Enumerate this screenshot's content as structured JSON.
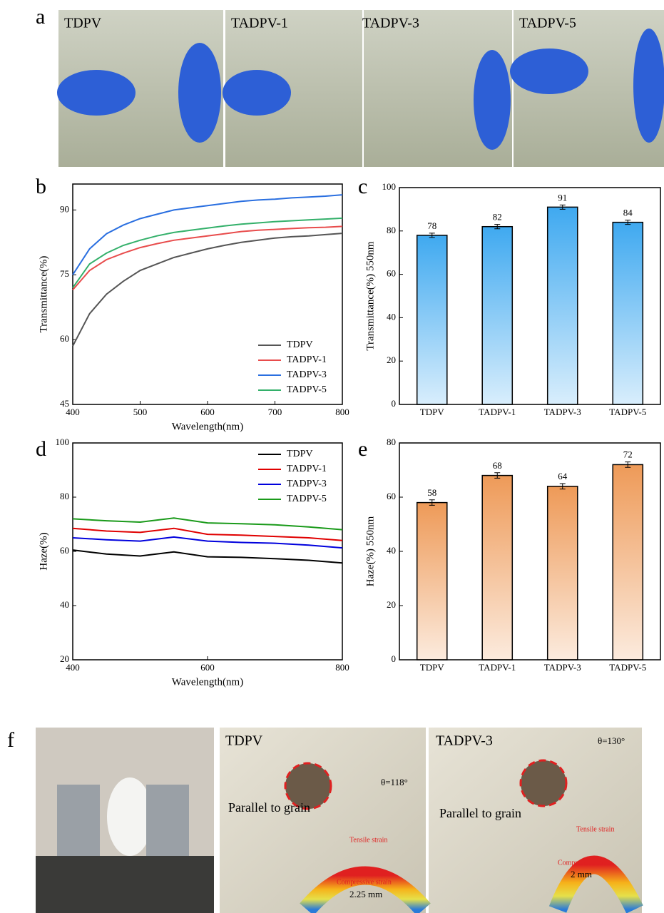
{
  "panel_labels": [
    "a",
    "b",
    "c",
    "d",
    "e",
    "f"
  ],
  "photos_a": {
    "labels": [
      "TDPV",
      "TADPV-1",
      "TADPV-3",
      "TADPV-5"
    ]
  },
  "photos_f": {
    "labels": [
      "TDPV",
      "TADPV-3"
    ],
    "direction": "Parallel to grain",
    "angles": [
      "θ=118°",
      "θ=130°"
    ],
    "tensile": "Tensile strain",
    "compressive": "Compressive strain",
    "radii": [
      "2.25 mm",
      "2 mm"
    ]
  },
  "chart_data": [
    {
      "type": "line",
      "xlabel": "Wavelength(nm)",
      "ylabel": "Transmittance(%)",
      "x": [
        400,
        425,
        450,
        475,
        500,
        525,
        550,
        575,
        600,
        625,
        650,
        675,
        700,
        725,
        750,
        775,
        800
      ],
      "xlim": [
        400,
        800
      ],
      "xticks": [
        400,
        500,
        600,
        700,
        800
      ],
      "ylim": [
        45,
        96
      ],
      "yticks": [
        45,
        60,
        75,
        90
      ],
      "legend": "lower right",
      "series": [
        {
          "name": "TDPV",
          "color": "#555555",
          "values": [
            58.5,
            66,
            70.5,
            73.5,
            76,
            77.5,
            79,
            80,
            81,
            81.8,
            82.5,
            83,
            83.5,
            83.8,
            84,
            84.3,
            84.6
          ]
        },
        {
          "name": "TADPV-1",
          "color": "#e84c4c",
          "values": [
            71.5,
            76,
            78.5,
            80,
            81.3,
            82.2,
            83,
            83.5,
            84,
            84.5,
            85,
            85.3,
            85.5,
            85.7,
            85.9,
            86,
            86.2
          ]
        },
        {
          "name": "TADPV-3",
          "color": "#2a6fe0",
          "values": [
            75,
            81,
            84.5,
            86.5,
            88,
            89,
            90,
            90.5,
            91,
            91.5,
            92,
            92.3,
            92.5,
            92.8,
            93,
            93.2,
            93.5
          ]
        },
        {
          "name": "TADPV-5",
          "color": "#33b06a",
          "values": [
            72,
            77.5,
            80,
            81.8,
            83,
            84,
            84.8,
            85.3,
            85.8,
            86.3,
            86.7,
            87,
            87.3,
            87.5,
            87.7,
            87.9,
            88.1
          ]
        }
      ]
    },
    {
      "type": "bar",
      "ylabel": "Transmittance(%)  550nm",
      "categories": [
        "TDPV",
        "TADPV-1",
        "TADPV-3",
        "TADPV-5"
      ],
      "values": [
        78,
        82,
        91,
        84
      ],
      "errors": [
        1,
        1,
        1,
        1
      ],
      "color": "#3fa9f0",
      "ylim": [
        0,
        100
      ],
      "yticks": [
        0,
        20,
        40,
        60,
        80,
        100
      ]
    },
    {
      "type": "line",
      "xlabel": "Wavelength(nm)",
      "ylabel": "Haze(%)",
      "x": [
        400,
        450,
        500,
        550,
        600,
        650,
        700,
        750,
        800
      ],
      "xlim": [
        400,
        800
      ],
      "xticks": [
        400,
        600,
        800
      ],
      "ylim": [
        20,
        100
      ],
      "yticks": [
        20,
        40,
        60,
        80,
        100
      ],
      "legend": "upper right",
      "series": [
        {
          "name": "TDPV",
          "color": "#000000",
          "values": [
            60.5,
            59,
            58.3,
            59.8,
            58,
            57.8,
            57.3,
            56.7,
            55.7
          ]
        },
        {
          "name": "TADPV-1",
          "color": "#e00000",
          "values": [
            68.5,
            67.5,
            67,
            68.5,
            66.3,
            66,
            65.5,
            65,
            64
          ]
        },
        {
          "name": "TADPV-3",
          "color": "#0000dd",
          "values": [
            65,
            64.3,
            63.8,
            65.3,
            63.8,
            63.3,
            63,
            62.3,
            61.3
          ]
        },
        {
          "name": "TADPV-5",
          "color": "#1a9a1a",
          "values": [
            72,
            71.3,
            70.8,
            72.3,
            70.5,
            70.2,
            69.8,
            69,
            68
          ]
        }
      ]
    },
    {
      "type": "bar",
      "ylabel": "Haze(%)  550nm",
      "categories": [
        "TDPV",
        "TADPV-1",
        "TADPV-3",
        "TADPV-5"
      ],
      "values": [
        58,
        68,
        64,
        72
      ],
      "errors": [
        1,
        1,
        1,
        1
      ],
      "color": "#ee9a58",
      "ylim": [
        0,
        80
      ],
      "yticks": [
        0,
        20,
        40,
        60,
        80
      ]
    }
  ]
}
